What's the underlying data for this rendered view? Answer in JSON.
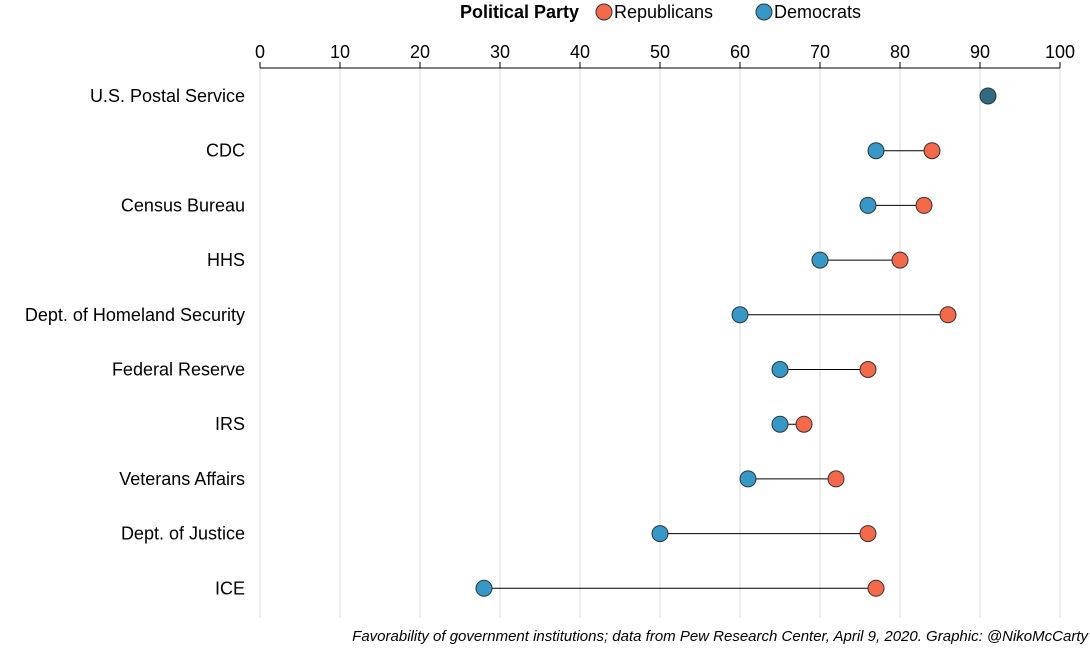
{
  "legend": {
    "title": "Political Party",
    "items": [
      {
        "label": "Republicans",
        "color": "#f4694a"
      },
      {
        "label": "Democrats",
        "color": "#3598c7"
      }
    ]
  },
  "caption": "Favorability of government institutions; data from Pew Research Center, April 9, 2020. Graphic: @NikoMcCarty",
  "colors": {
    "republicans": "#f4694a",
    "democrats": "#3598c7",
    "overlap": "#2e6a82",
    "grid": "#d9d9d9",
    "stroke": "#333333"
  },
  "chart_data": {
    "type": "scatter",
    "subtype": "dumbbell",
    "xlim": [
      0,
      100
    ],
    "x_ticks": [
      0,
      10,
      20,
      30,
      40,
      50,
      60,
      70,
      80,
      90,
      100
    ],
    "grid": "vertical",
    "axis_position": "top",
    "legend_placement": "top-center",
    "categories": [
      "U.S. Postal Service",
      "CDC",
      "Census Bureau",
      "HHS",
      "Dept. of Homeland Security",
      "Federal Reserve",
      "IRS",
      "Veterans Affairs",
      "Dept. of Justice",
      "ICE"
    ],
    "series": [
      {
        "name": "Republicans",
        "values": [
          91,
          84,
          83,
          80,
          86,
          76,
          68,
          72,
          76,
          77
        ]
      },
      {
        "name": "Democrats",
        "values": [
          91,
          77,
          76,
          70,
          60,
          65,
          65,
          61,
          50,
          28
        ]
      }
    ]
  }
}
